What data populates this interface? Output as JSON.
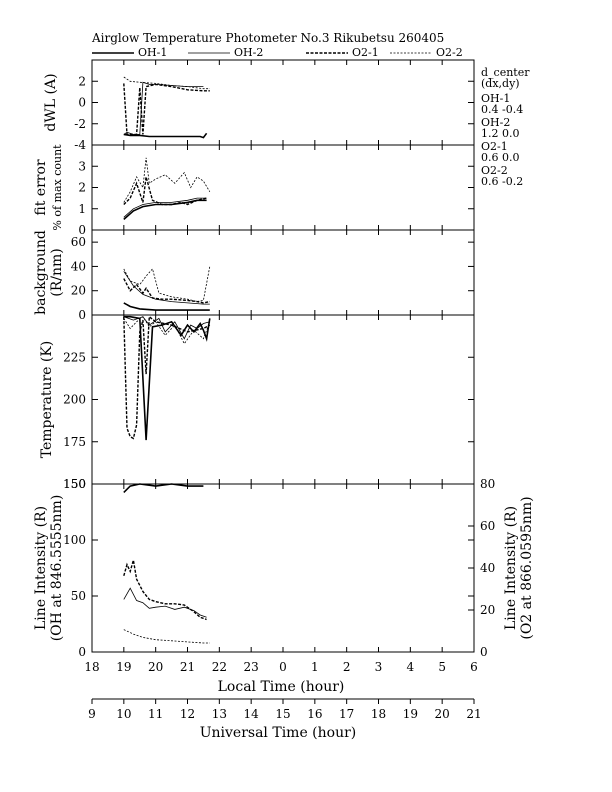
{
  "header": {
    "title": "Airglow Temperature Photometer No.3  Rikubetsu    260405"
  },
  "legend": [
    {
      "label": "OH-1",
      "style": "solid-thick"
    },
    {
      "label": "OH-2",
      "style": "solid-thin"
    },
    {
      "label": "O2-1",
      "style": "dashed-thick"
    },
    {
      "label": "O2-2",
      "style": "dashed-thin"
    }
  ],
  "side_info": {
    "heading_line1": "d_center",
    "heading_line2": "(dx,dy)",
    "entries": [
      {
        "name": "OH-1",
        "values": "0.4   -0.4"
      },
      {
        "name": "OH-2",
        "values": "1.2   0.0"
      },
      {
        "name": "O2-1",
        "values": "0.6   0.0"
      },
      {
        "name": "O2-2",
        "values": "0.6   -0.2"
      }
    ]
  },
  "axes": {
    "local_time_label": "Local Time (hour)",
    "universal_time_label": "Universal Time (hour)",
    "local_ticks": [
      "18",
      "19",
      "20",
      "21",
      "22",
      "23",
      "0",
      "1",
      "2",
      "3",
      "4",
      "5",
      "6"
    ],
    "universal_ticks": [
      "9",
      "10",
      "11",
      "12",
      "13",
      "14",
      "15",
      "16",
      "17",
      "18",
      "19",
      "20",
      "21"
    ]
  },
  "chart_data": [
    {
      "id": "dwl",
      "type": "line",
      "ylabel_lines": [
        "dWL (A)"
      ],
      "ylim": [
        -4,
        4
      ],
      "yticks": [
        "-4",
        "-2",
        "0",
        "2"
      ],
      "xlim": [
        18,
        30
      ],
      "series": [
        {
          "name": "OH-1",
          "style": "solid-thick",
          "x": [
            19.0,
            19.2,
            19.5,
            19.8,
            20.1,
            20.5,
            21.0,
            21.4,
            21.5,
            21.6
          ],
          "y": [
            -3.0,
            -3.1,
            -3.1,
            -3.2,
            -3.2,
            -3.2,
            -3.2,
            -3.2,
            -3.3,
            -2.9
          ]
        },
        {
          "name": "OH-2",
          "style": "solid-thin",
          "x": [
            19.0,
            19.1,
            19.3,
            19.5,
            19.6,
            19.7,
            19.8,
            20.0,
            20.5,
            21.0,
            21.5
          ],
          "y": [
            -3.0,
            -2.8,
            -3.0,
            -3.0,
            1.9,
            1.8,
            1.7,
            1.7,
            1.6,
            1.5,
            1.5
          ]
        },
        {
          "name": "O2-1",
          "style": "dashed-thick",
          "x": [
            19.0,
            19.1,
            19.3,
            19.4,
            19.5,
            19.6,
            19.7,
            20.0,
            20.5,
            21.0,
            21.5,
            21.7
          ],
          "y": [
            1.8,
            -3.0,
            -3.0,
            -3.0,
            1.4,
            -3.0,
            1.5,
            1.7,
            1.5,
            1.2,
            1.1,
            1.1
          ]
        },
        {
          "name": "O2-2",
          "style": "dashed-thin",
          "x": [
            19.0,
            19.2,
            19.5,
            20.0,
            20.5,
            21.0,
            21.5,
            21.7
          ],
          "y": [
            2.4,
            2.0,
            1.9,
            1.8,
            1.6,
            1.5,
            1.3,
            1.3
          ]
        }
      ]
    },
    {
      "id": "fit_error",
      "type": "line",
      "ylabel_lines": [
        "fit error",
        "% of max count"
      ],
      "ylim": [
        0,
        4
      ],
      "yticks": [
        "0",
        "1",
        "2",
        "3"
      ],
      "xlim": [
        18,
        30
      ],
      "series": [
        {
          "name": "OH-1",
          "style": "solid-thick",
          "x": [
            19.0,
            19.3,
            19.6,
            20.0,
            20.5,
            21.0,
            21.3,
            21.6
          ],
          "y": [
            0.5,
            0.9,
            1.1,
            1.2,
            1.2,
            1.3,
            1.4,
            1.4
          ]
        },
        {
          "name": "OH-2",
          "style": "solid-thin",
          "x": [
            19.0,
            19.3,
            19.6,
            20.0,
            20.5,
            21.0,
            21.3,
            21.6
          ],
          "y": [
            0.6,
            1.0,
            1.2,
            1.3,
            1.3,
            1.4,
            1.5,
            1.5
          ]
        },
        {
          "name": "O2-1",
          "style": "dashed-thick",
          "x": [
            19.0,
            19.2,
            19.4,
            19.6,
            19.7,
            19.9,
            20.2,
            20.5,
            20.8,
            21.0,
            21.3,
            21.6
          ],
          "y": [
            1.2,
            1.5,
            2.2,
            1.3,
            2.5,
            1.4,
            1.2,
            1.2,
            1.3,
            1.2,
            1.4,
            1.5
          ]
        },
        {
          "name": "O2-2",
          "style": "dashed-thin",
          "x": [
            19.0,
            19.2,
            19.4,
            19.6,
            19.7,
            19.8,
            20.0,
            20.3,
            20.6,
            20.9,
            21.1,
            21.3,
            21.5,
            21.7
          ],
          "y": [
            1.3,
            1.8,
            2.5,
            2.0,
            3.4,
            2.2,
            2.4,
            2.6,
            2.2,
            2.7,
            2.0,
            2.5,
            2.3,
            1.8
          ]
        }
      ]
    },
    {
      "id": "background",
      "type": "line",
      "ylabel_lines": [
        "background",
        "(R/nm)"
      ],
      "ylim": [
        0,
        70
      ],
      "yticks": [
        "0",
        "20",
        "40",
        "60"
      ],
      "xlim": [
        18,
        30
      ],
      "series": [
        {
          "name": "OH-1",
          "style": "solid-thick",
          "x": [
            19.0,
            19.2,
            19.5,
            20.0,
            20.5,
            21.0,
            21.5,
            21.7
          ],
          "y": [
            10,
            7,
            5,
            4,
            4,
            4,
            4,
            4
          ]
        },
        {
          "name": "OH-2",
          "style": "solid-thin",
          "x": [
            19.0,
            19.3,
            19.6,
            20.0,
            20.5,
            21.0,
            21.5,
            21.7
          ],
          "y": [
            36,
            24,
            17,
            13,
            11,
            10,
            9,
            9
          ]
        },
        {
          "name": "O2-1",
          "style": "dashed-thick",
          "x": [
            19.0,
            19.2,
            19.4,
            19.6,
            19.7,
            19.9,
            20.2,
            20.5,
            21.0,
            21.3,
            21.5,
            21.7
          ],
          "y": [
            30,
            20,
            25,
            18,
            22,
            14,
            13,
            13,
            12,
            11,
            10,
            11
          ]
        },
        {
          "name": "O2-2",
          "style": "dashed-thin",
          "x": [
            19.0,
            19.2,
            19.5,
            19.7,
            19.9,
            20.1,
            20.5,
            21.0,
            21.3,
            21.5,
            21.7
          ],
          "y": [
            38,
            28,
            25,
            32,
            38,
            18,
            15,
            13,
            11,
            12,
            40
          ]
        }
      ]
    },
    {
      "id": "temperature",
      "type": "line",
      "ylabel_lines": [
        "Temperature (K)"
      ],
      "ylim": [
        150,
        250
      ],
      "yticks": [
        "150",
        "175",
        "200",
        "225"
      ],
      "xlim": [
        18,
        30
      ],
      "series": [
        {
          "name": "OH-1",
          "style": "solid-thick",
          "x": [
            19.0,
            19.2,
            19.5,
            19.7,
            19.9,
            20.2,
            20.5,
            20.8,
            21.0,
            21.2,
            21.4,
            21.5,
            21.6,
            21.7
          ],
          "y": [
            249,
            249,
            248,
            176,
            243,
            244,
            246,
            238,
            244,
            240,
            245,
            241,
            236,
            248
          ]
        },
        {
          "name": "OH-2",
          "style": "solid-thin",
          "x": [
            19.0,
            19.3,
            19.6,
            19.8,
            20.1,
            20.3,
            20.6,
            20.9,
            21.1,
            21.3,
            21.5,
            21.7
          ],
          "y": [
            249,
            247,
            249,
            244,
            248,
            240,
            246,
            236,
            244,
            242,
            245,
            246
          ]
        },
        {
          "name": "O2-1",
          "style": "dashed-thick",
          "x": [
            19.0,
            19.1,
            19.2,
            19.3,
            19.4,
            19.5,
            19.6,
            19.7,
            19.8,
            20.0,
            20.5,
            21.0,
            21.5,
            21.7
          ],
          "y": [
            249,
            183,
            178,
            177,
            185,
            240,
            247,
            215,
            249,
            246,
            244,
            240,
            242,
            244
          ]
        },
        {
          "name": "O2-2",
          "style": "dashed-thin",
          "x": [
            19.0,
            19.2,
            19.4,
            19.6,
            19.8,
            20.0,
            20.3,
            20.6,
            20.9,
            21.2,
            21.5,
            21.7
          ],
          "y": [
            248,
            242,
            246,
            249,
            243,
            246,
            238,
            244,
            233,
            241,
            236,
            246
          ]
        }
      ]
    },
    {
      "id": "line_intensity",
      "type": "line",
      "ylabel_lines": [
        "Line Intensity (R)",
        "(OH at 846.5555nm)"
      ],
      "ylabel_right_lines": [
        "Line Intensity (R)",
        "(O2 at 866.0595nm)"
      ],
      "ylim": [
        0,
        150
      ],
      "yticks": [
        "0",
        "50",
        "100",
        "150"
      ],
      "ylim_right": [
        0,
        80
      ],
      "yticks_right": [
        "0",
        "20",
        "40",
        "60",
        "80"
      ],
      "xlim": [
        18,
        30
      ],
      "series": [
        {
          "name": "OH-1",
          "style": "solid-thick",
          "axis": "right",
          "x": [
            19.0,
            19.2,
            19.5,
            20.0,
            20.5,
            21.0,
            21.3,
            21.5
          ],
          "y": [
            76,
            79,
            80,
            79,
            80,
            79,
            79,
            79
          ]
        },
        {
          "name": "OH-2",
          "style": "solid-thin",
          "x": [
            19.0,
            19.2,
            19.4,
            19.6,
            19.8,
            20.0,
            20.3,
            20.6,
            20.9,
            21.2,
            21.4,
            21.6
          ],
          "y": [
            47,
            57,
            46,
            44,
            39,
            40,
            41,
            38,
            40,
            37,
            33,
            31
          ]
        },
        {
          "name": "O2-1",
          "style": "dashed-thick",
          "x": [
            19.0,
            19.1,
            19.2,
            19.3,
            19.4,
            19.6,
            19.8,
            20.0,
            20.3,
            20.6,
            20.9,
            21.2,
            21.4,
            21.6
          ],
          "y": [
            68,
            78,
            72,
            82,
            65,
            54,
            47,
            45,
            43,
            43,
            42,
            36,
            31,
            29
          ]
        },
        {
          "name": "O2-2",
          "style": "dashed-thin",
          "x": [
            19.0,
            19.3,
            19.6,
            20.0,
            20.5,
            21.0,
            21.5,
            21.7
          ],
          "y": [
            20,
            16,
            13,
            11,
            10,
            9,
            8,
            8
          ]
        }
      ]
    }
  ]
}
